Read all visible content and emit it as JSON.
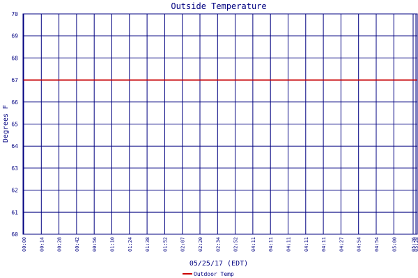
{
  "chart_data": {
    "type": "line",
    "title": "Outside Temperature",
    "xlabel": "05/25/17 (EDT)",
    "ylabel": "Degrees F",
    "ylim": [
      60,
      70
    ],
    "yticks": [
      "60",
      "61",
      "62",
      "63",
      "64",
      "65",
      "66",
      "67",
      "68",
      "69",
      "70"
    ],
    "xticks": [
      "00:00",
      "00:14",
      "00:28",
      "00:42",
      "00:56",
      "01:10",
      "01:24",
      "01:38",
      "01:52",
      "02:07",
      "02:20",
      "02:34",
      "02:52",
      "04:11",
      "04:11",
      "04:11",
      "04:11",
      "04:11",
      "04:27",
      "04:54",
      "04:54",
      "05:00",
      "05:26",
      "05:28"
    ],
    "series": [
      {
        "name": "Outdoor Temp",
        "color": "#cc0000",
        "values": [
          67,
          67
        ]
      }
    ],
    "grid": true,
    "legend": "bottom-center",
    "colors": {
      "grid": "#000080",
      "frame": "#000080",
      "text": "#000080",
      "series": "#cc0000",
      "background": "#ffffff"
    }
  }
}
